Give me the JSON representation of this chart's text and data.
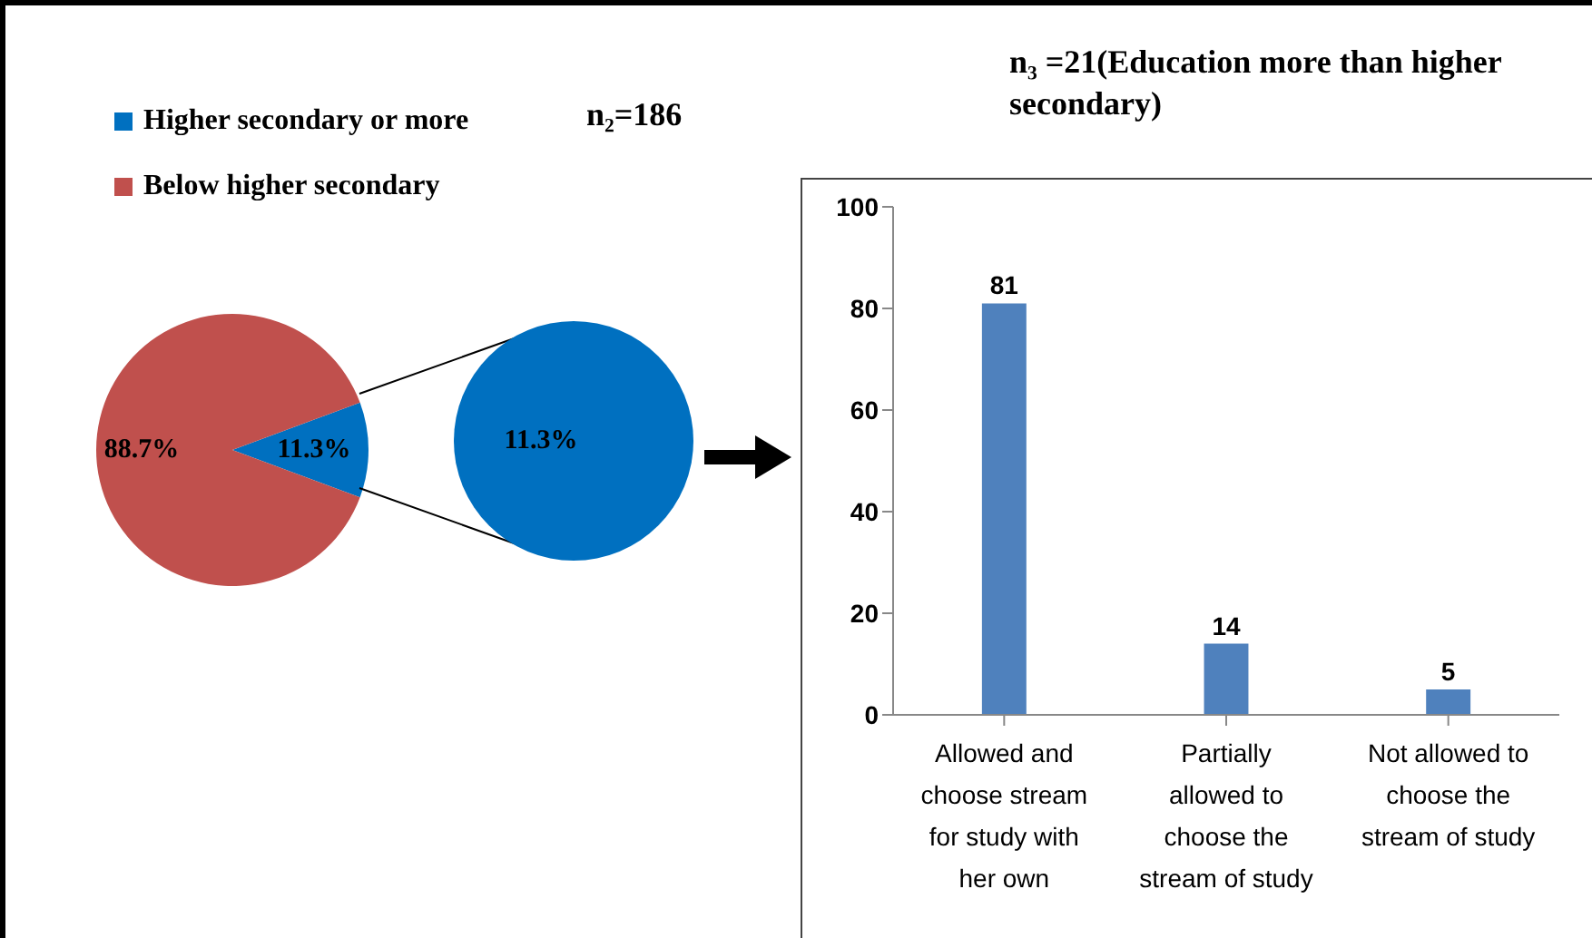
{
  "chart_data": [
    {
      "type": "pie",
      "categories": [
        "Higher secondary or more",
        "Below higher secondary"
      ],
      "values": [
        11.3,
        88.7
      ],
      "colors": [
        "#0070c0",
        "#c0504d"
      ],
      "value_labels": [
        "11.3%",
        "88.7%"
      ],
      "legend": "top",
      "annotations": [
        "n₂=186",
        "11.3%"
      ]
    },
    {
      "type": "bar",
      "title": "n₃ =21(Education more than higher secondary)",
      "categories": [
        "Allowed and choose stream for study with her own",
        "Partially allowed to choose the stream of study",
        "Not allowed to choose the stream of study"
      ],
      "values": [
        81,
        14,
        5
      ],
      "color": "#4f81bd",
      "ylim": [
        0,
        100
      ],
      "yticks": [
        0,
        20,
        40,
        60,
        80,
        100
      ],
      "data_labels": true
    }
  ]
}
